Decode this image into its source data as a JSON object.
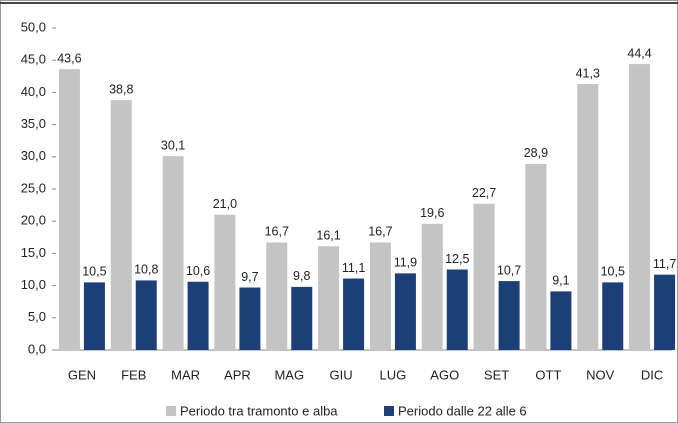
{
  "chart_data": {
    "type": "bar",
    "categories": [
      "GEN",
      "FEB",
      "MAR",
      "APR",
      "MAG",
      "GIU",
      "LUG",
      "AGO",
      "SET",
      "OTT",
      "NOV",
      "DIC"
    ],
    "series": [
      {
        "name": "Periodo tra tramonto e alba",
        "color": "#c4c4c4",
        "values": [
          43.6,
          38.8,
          30.1,
          21.0,
          16.7,
          16.1,
          16.7,
          19.6,
          22.7,
          28.9,
          41.3,
          44.4
        ],
        "value_labels": [
          "43,6",
          "38,8",
          "30,1",
          "21,0",
          "16,7",
          "16,1",
          "16,7",
          "19,6",
          "22,7",
          "28,9",
          "41,3",
          "44,4"
        ]
      },
      {
        "name": "Periodo dalle 22 alle 6",
        "color": "#1d3f78",
        "values": [
          10.5,
          10.8,
          10.6,
          9.7,
          9.8,
          11.1,
          11.9,
          12.5,
          10.7,
          9.1,
          10.5,
          11.7
        ],
        "value_labels": [
          "10,5",
          "10,8",
          "10,6",
          "9,7",
          "9,8",
          "11,1",
          "11,9",
          "12,5",
          "10,7",
          "9,1",
          "10,5",
          "11,7"
        ]
      }
    ],
    "ylim": [
      0,
      50
    ],
    "yticks": [
      {
        "value": 0,
        "label": "0,0"
      },
      {
        "value": 5,
        "label": "5,0"
      },
      {
        "value": 10,
        "label": "10,0"
      },
      {
        "value": 15,
        "label": "15,0"
      },
      {
        "value": 20,
        "label": "20,0"
      },
      {
        "value": 25,
        "label": "25,0"
      },
      {
        "value": 30,
        "label": "30,0"
      },
      {
        "value": 35,
        "label": "35,0"
      },
      {
        "value": 40,
        "label": "40,0"
      },
      {
        "value": 45,
        "label": "45,0"
      },
      {
        "value": 50,
        "label": "50,0"
      }
    ],
    "legend": "bottom"
  }
}
